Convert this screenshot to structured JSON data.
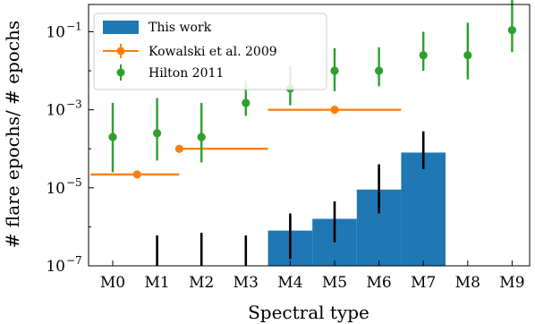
{
  "chart_data": {
    "type": "bar",
    "title": "",
    "xlabel": "Spectral type",
    "ylabel": "# flare epochs/ # epochs",
    "yscale": "log",
    "ylim": [
      1e-07,
      0.5
    ],
    "categories": [
      "M0",
      "M1",
      "M2",
      "M3",
      "M4",
      "M5",
      "M6",
      "M7",
      "M8",
      "M9"
    ],
    "y_ticks": [
      {
        "value": 1e-07,
        "base": "10",
        "exp": "−7"
      },
      {
        "value": 1e-05,
        "base": "10",
        "exp": "−5"
      },
      {
        "value": 0.001,
        "base": "10",
        "exp": "−3"
      },
      {
        "value": 0.1,
        "base": "10",
        "exp": "−1"
      }
    ],
    "legend_position": "upper-left",
    "legend": {
      "this_work": "This work",
      "kowalski": "Kowalski et al. 2009",
      "hilton": "Hilton 2011"
    },
    "colors": {
      "this_work": "#1f77b4",
      "kowalski": "#ff7f0e",
      "hilton": "#2ca02c",
      "errorbar": "#000000"
    },
    "this_work": {
      "bars": [
        {
          "category": "M4",
          "value": 8e-07
        },
        {
          "category": "M5",
          "value": 1.6e-06
        },
        {
          "category": "M6",
          "value": 9e-06
        },
        {
          "category": "M7",
          "value": 8e-05
        }
      ],
      "errorbars": [
        {
          "category": "M1",
          "low": 1e-07,
          "high": 6e-07
        },
        {
          "category": "M2",
          "low": 1e-07,
          "high": 7e-07
        },
        {
          "category": "M3",
          "low": 1e-07,
          "high": 6e-07
        },
        {
          "category": "M4",
          "low": 1.5e-07,
          "high": 2.2e-06
        },
        {
          "category": "M5",
          "low": 4e-07,
          "high": 4.5e-06
        },
        {
          "category": "M6",
          "low": 2.2e-06,
          "high": 4e-05
        },
        {
          "category": "M7",
          "low": 3e-05,
          "high": 0.00028
        }
      ]
    },
    "kowalski": {
      "points": [
        {
          "x_start": "M0",
          "x_end": "M1",
          "x_center": 0.55,
          "value": 2.2e-05
        },
        {
          "x_start": "M2",
          "x_end": "M3",
          "x_center": 1.5,
          "value": 0.0001
        },
        {
          "x_start": "M4",
          "x_end": "M6",
          "x_center": 5.0,
          "value": 0.001
        }
      ]
    },
    "hilton": {
      "points": [
        {
          "category": "M0",
          "value": 0.0002,
          "low": 2.5e-05,
          "high": 0.0015
        },
        {
          "category": "M1",
          "value": 0.00025,
          "low": 5e-05,
          "high": 0.002
        },
        {
          "category": "M2",
          "value": 0.0002,
          "low": 4.5e-05,
          "high": 0.0015
        },
        {
          "category": "M3",
          "value": 0.0015,
          "low": 0.0007,
          "high": 0.0055
        },
        {
          "category": "M4",
          "value": 0.0035,
          "low": 0.0013,
          "high": 0.013
        },
        {
          "category": "M5",
          "value": 0.01,
          "low": 0.003,
          "high": 0.038
        },
        {
          "category": "M6",
          "value": 0.01,
          "low": 0.004,
          "high": 0.04
        },
        {
          "category": "M7",
          "value": 0.025,
          "low": 0.01,
          "high": 0.1
        },
        {
          "category": "M8",
          "value": 0.025,
          "low": 0.006,
          "high": 0.17
        },
        {
          "category": "M9",
          "value": 0.11,
          "low": 0.03,
          "high": 0.7
        }
      ]
    }
  }
}
